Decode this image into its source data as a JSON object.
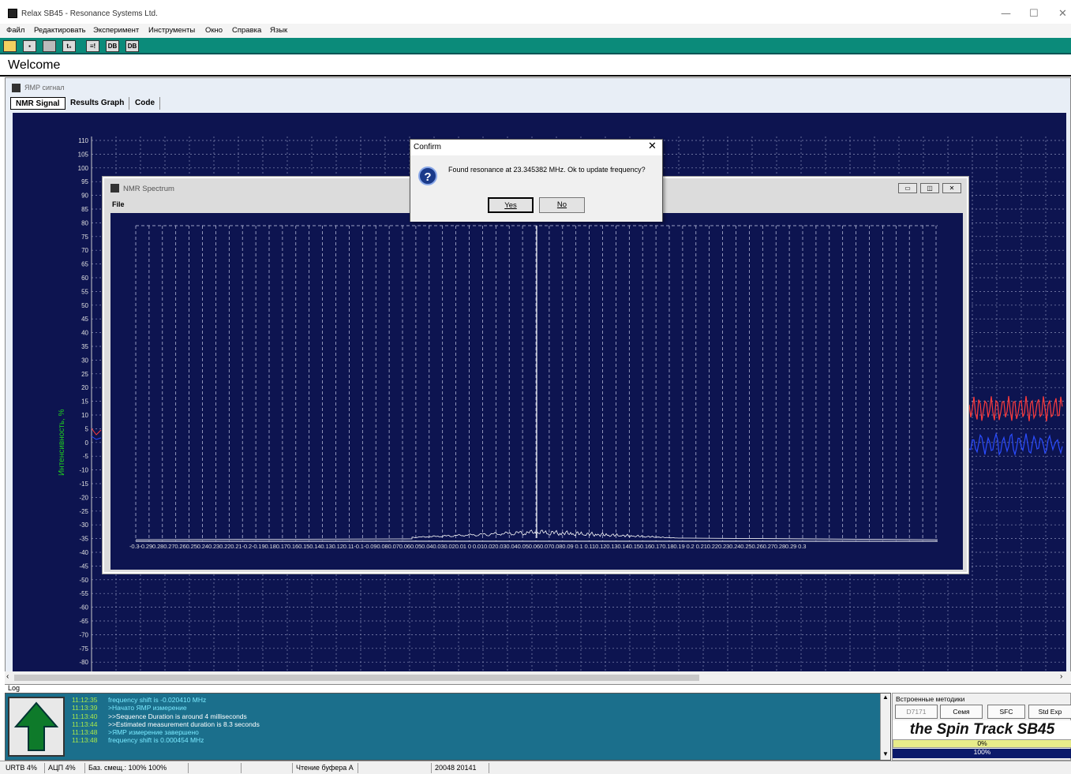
{
  "window": {
    "title": "Relax SB45 - Resonance Systems Ltd.",
    "min": "—",
    "max": "☐",
    "close": "✕"
  },
  "menu": [
    "Файл",
    "Редактировать",
    "Эксперимент",
    "Инструменты",
    "Окно",
    "Справка",
    "Язык"
  ],
  "toolbar": {
    "b4": "t₀",
    "b5": "≡!",
    "b6": "DB",
    "b7": "DB"
  },
  "welcome": "Welcome",
  "panel": {
    "title": "ЯМР сигнал",
    "tabs": [
      "NMR Signal",
      "Results Graph",
      "Code"
    ],
    "ylabel": "Интенсивность, %",
    "yticks": [
      "110",
      "105",
      "100",
      "95",
      "90",
      "85",
      "80",
      "75",
      "70",
      "65",
      "60",
      "55",
      "50",
      "45",
      "40",
      "35",
      "30",
      "25",
      "20",
      "15",
      "10",
      "5",
      "0",
      "-5",
      "-10",
      "-15",
      "-20",
      "-25",
      "-30",
      "-35",
      "-40",
      "-45",
      "-50",
      "-55",
      "-60",
      "-65",
      "-70",
      "-75",
      "-80"
    ]
  },
  "spectrum": {
    "title": "NMR Spectrum",
    "menu_file": "File",
    "xticks": "-0.3-0.290.280.270.260.250.240.230.220.21-0.2-0.190.180.170.160.150.140.130.120.11-0.1-0.090.080.070.060.050.040.030.020.01  0  0.010.020.030.040.050.060.070.080.09 0.1 0.110.120.130.140.150.160.170.180.19 0.2 0.210.220.230.240.250.260.270.280.29 0.3",
    "chart_data": {
      "type": "line",
      "x_range": [
        -0.3,
        0.3
      ],
      "peak": {
        "x": 0,
        "label": "resonance"
      },
      "grid": true
    }
  },
  "dialog": {
    "title": "Confirm",
    "close": "✕",
    "icon": "?",
    "message": "Found resonance at 23.345382 MHz. Ok to update frequency?",
    "yes": "Yes",
    "no": "No"
  },
  "log": {
    "label": "Log",
    "lines": [
      {
        "time": "11:12:35",
        "msg": "frequency shift is -0.020410 MHz"
      },
      {
        "time": "11:13:39",
        "msg": ">Начато ЯМР измерение"
      },
      {
        "time": "11:13:40",
        "msg": ">>Sequence Duration is around 4 milliseconds"
      },
      {
        "time": "11:13:44",
        "msg": ">>Estimated measurement duration is 8.3 seconds"
      },
      {
        "time": "11:13:48",
        "msg": ">ЯМР измерение завершено"
      },
      {
        "time": "11:13:48",
        "msg": "frequency shift is 0.000454 MHz"
      }
    ]
  },
  "methods": {
    "title": "Встроенные методики",
    "buttons": [
      "D7171",
      "Семя",
      "SFC",
      "Std Exp"
    ],
    "brand": "the Spin Track SB45",
    "bar1": "0%",
    "bar2": "100%"
  },
  "status": [
    "URTB 4%",
    "АЦП 4%",
    "Баз. смещ.: 100% 100%",
    "",
    "",
    "Чтение буфера А",
    "",
    "20048 20141",
    ""
  ]
}
